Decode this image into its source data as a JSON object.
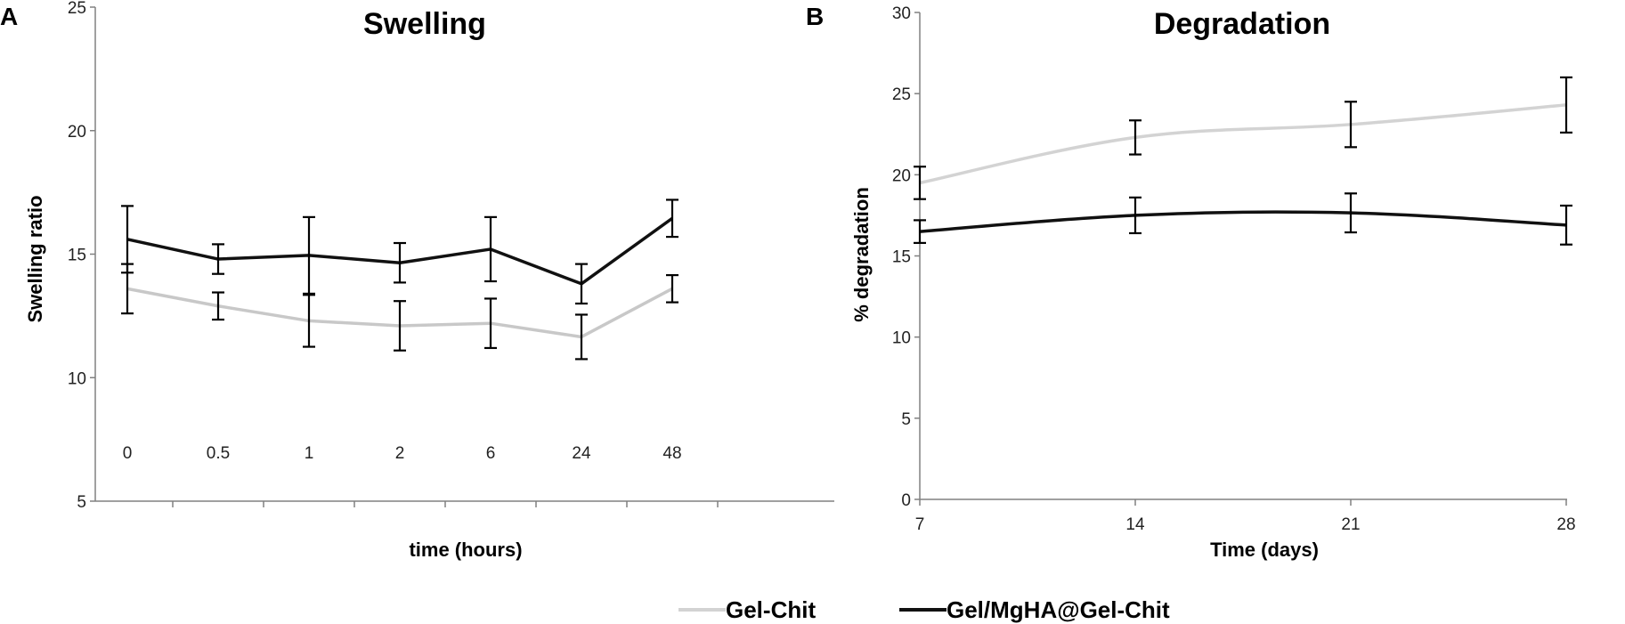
{
  "chart_data": [
    {
      "type": "line",
      "panel_label": "A",
      "title": "Swelling",
      "xlabel": "time (hours)",
      "ylabel": "Swelling ratio",
      "ylabel_color": "#2E4A70",
      "categories": [
        "0",
        "0.5",
        "1",
        "2",
        "6",
        "24",
        "48"
      ],
      "ylim": [
        5,
        25
      ],
      "yticks": [
        "5",
        "10",
        "15",
        "20",
        "25"
      ],
      "ytick_values": [
        5,
        10,
        15,
        20,
        25
      ],
      "grid": false,
      "series": [
        {
          "name": "Gel-Chit",
          "color": "#C8C8C8",
          "values": [
            13.6,
            12.9,
            12.3,
            12.1,
            12.2,
            11.65,
            13.6
          ],
          "errors": [
            1.0,
            0.55,
            1.05,
            1.0,
            1.0,
            0.9,
            0.55
          ]
        },
        {
          "name": "Gel/MgHA@Gel-Chit",
          "color": "#111111",
          "values": [
            15.6,
            14.8,
            14.95,
            14.65,
            15.2,
            13.8,
            16.45
          ],
          "errors": [
            1.35,
            0.6,
            1.55,
            0.8,
            1.3,
            0.8,
            0.75
          ]
        }
      ]
    },
    {
      "type": "line",
      "panel_label": "B",
      "title": "Degradation",
      "xlabel": "Time (days)",
      "ylabel": "% degradation",
      "ylabel_color": "#000000",
      "categories": [
        "7",
        "14",
        "21",
        "28"
      ],
      "ylim": [
        0,
        30
      ],
      "yticks": [
        "0",
        "5",
        "10",
        "15",
        "20",
        "25",
        "30"
      ],
      "ytick_values": [
        0,
        5,
        10,
        15,
        20,
        25,
        30
      ],
      "grid": false,
      "smooth": true,
      "series": [
        {
          "name": "Gel-Chit",
          "color": "#D3D3D3",
          "values": [
            19.5,
            22.3,
            23.1,
            24.3
          ],
          "errors": [
            1.0,
            1.05,
            1.4,
            1.7
          ]
        },
        {
          "name": "Gel/MgHA@Gel-Chit",
          "color": "#111111",
          "values": [
            16.5,
            17.5,
            17.65,
            16.9
          ],
          "errors": [
            0.7,
            1.1,
            1.2,
            1.2
          ]
        }
      ]
    }
  ],
  "legend": {
    "placement": "bottom-center",
    "entries": [
      {
        "name": "Gel-Chit",
        "color": "#D3D3D3"
      },
      {
        "name": "Gel/MgHA@Gel-Chit",
        "color": "#111111"
      }
    ]
  }
}
